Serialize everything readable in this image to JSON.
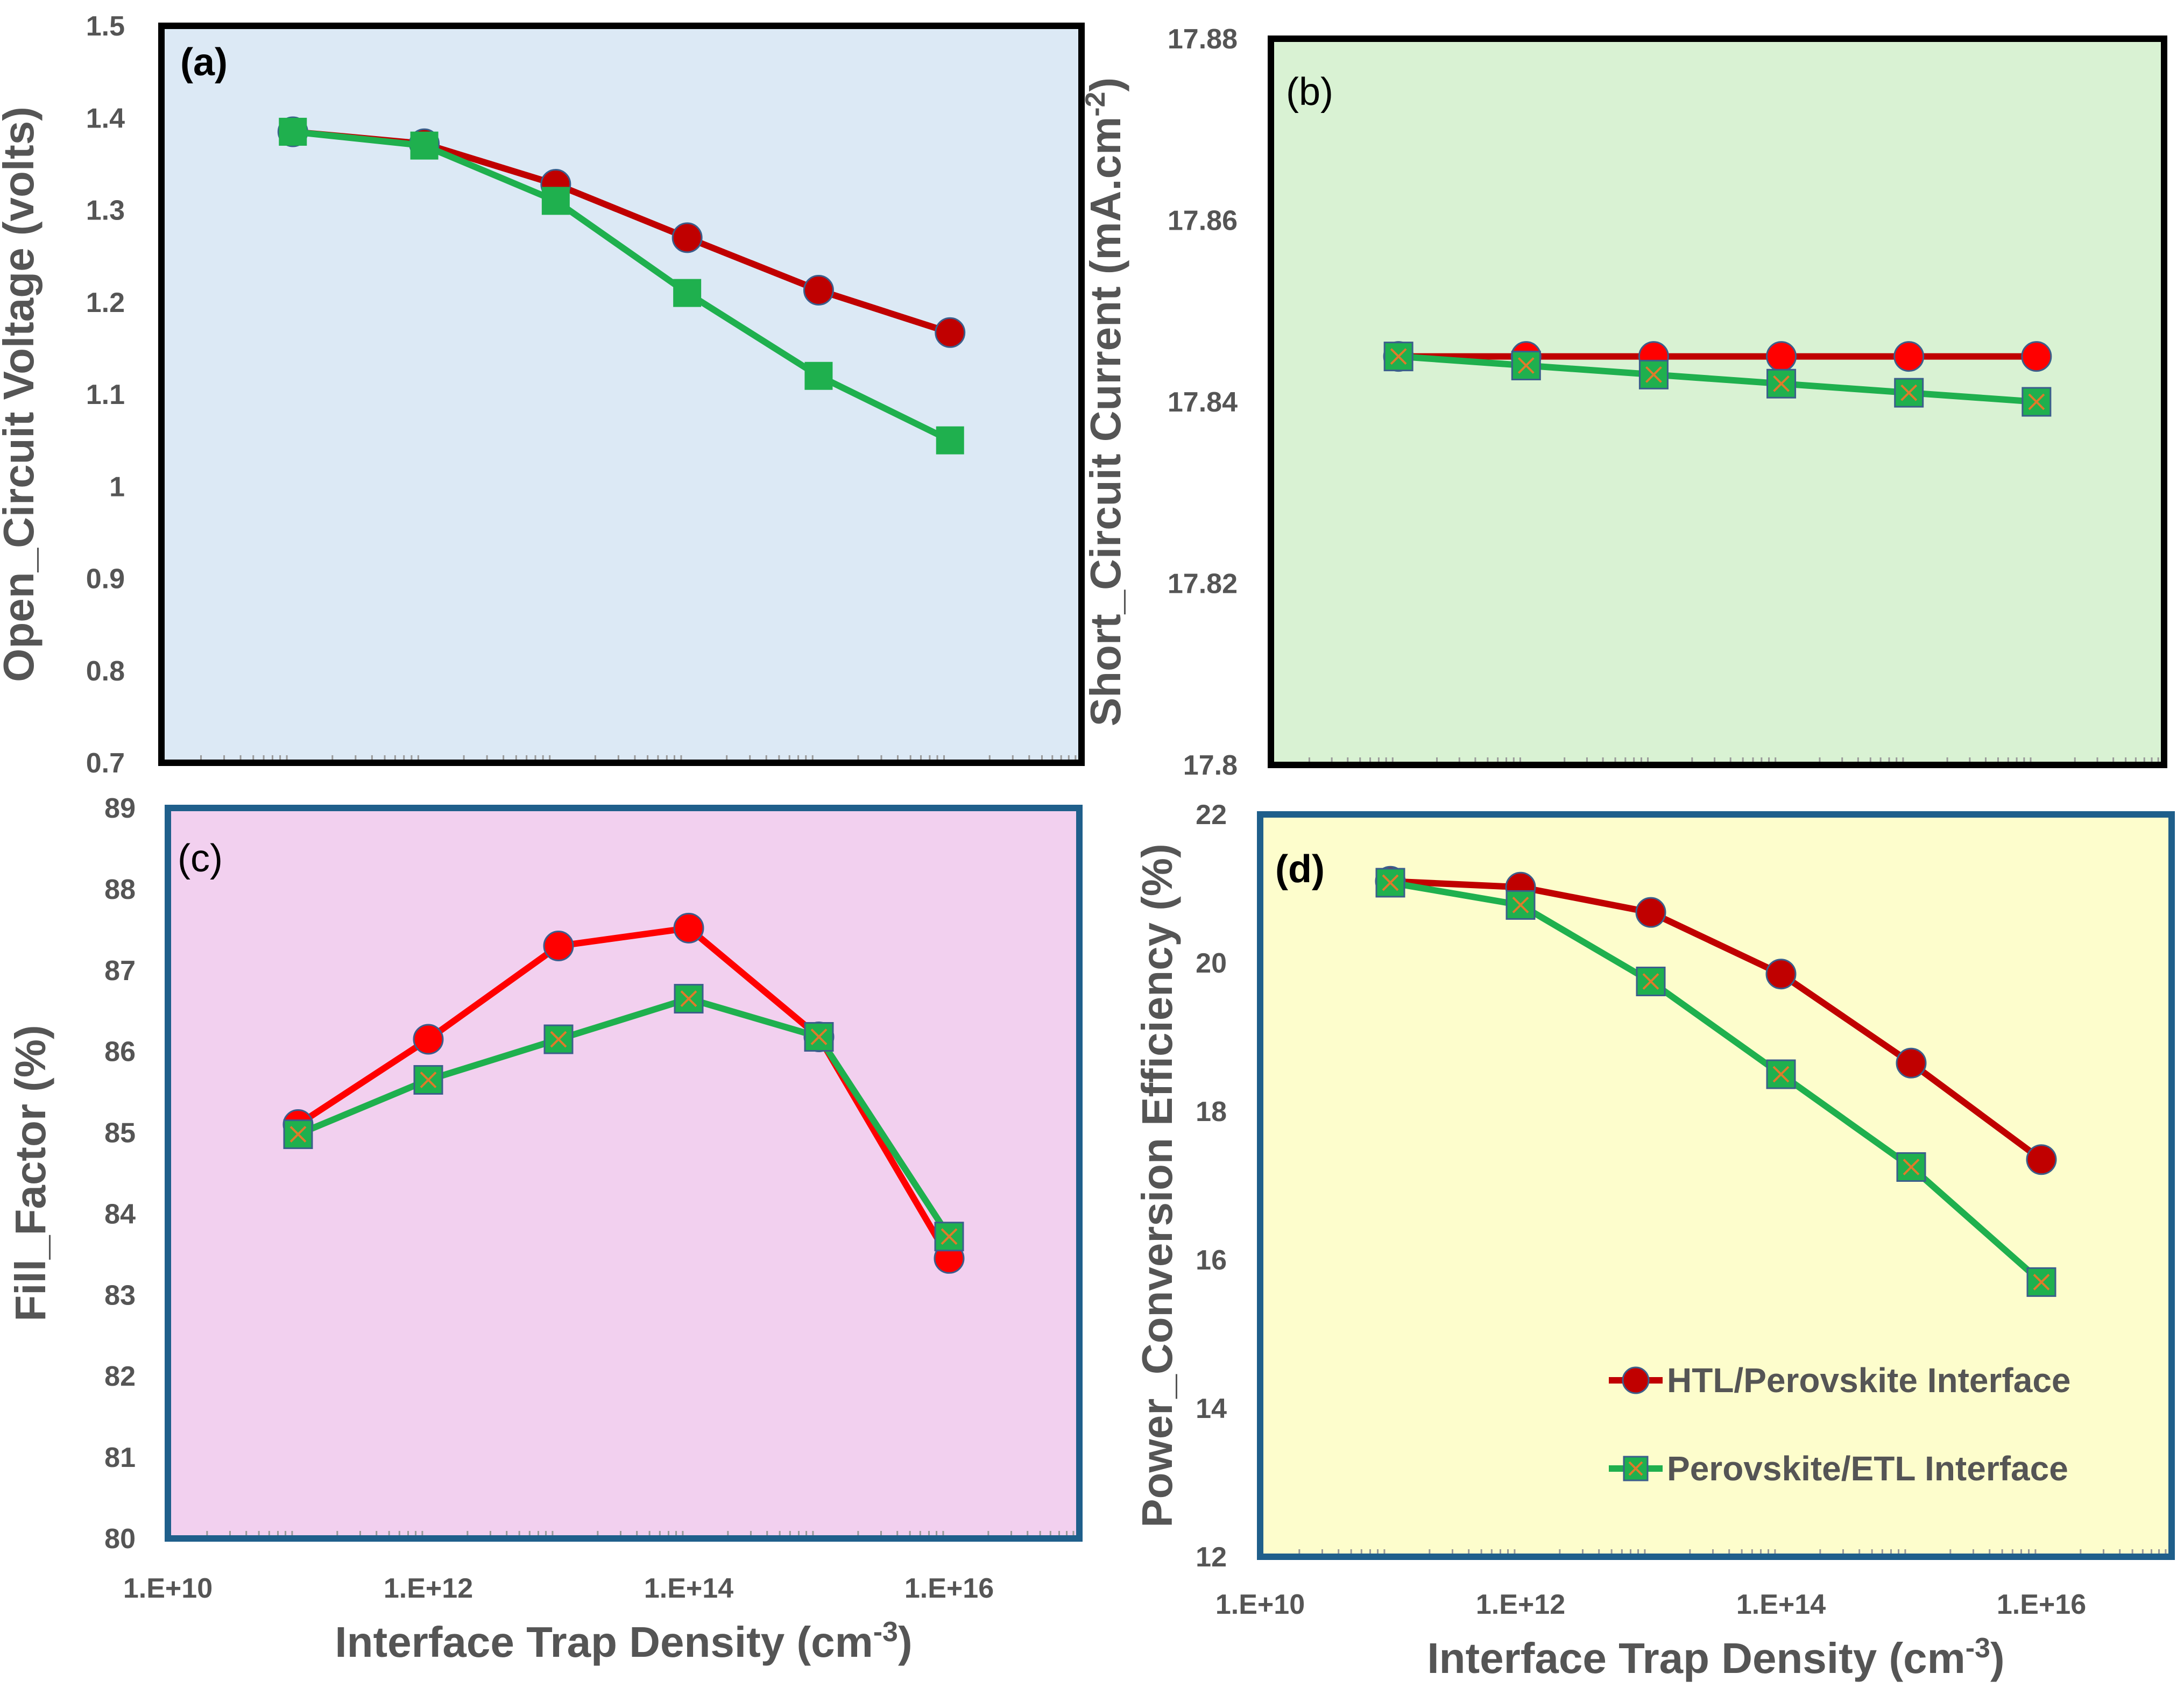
{
  "chart_data": [
    {
      "type": "line",
      "panel_label": "(a)",
      "ylabel": "Open_Circuit Voltage (volts)",
      "xlabel": "",
      "xscale": "log",
      "xlim": [
        10000000000.0,
        1e+17
      ],
      "ylim": [
        0.7,
        1.5
      ],
      "yticks": [
        "0.7",
        "0.8",
        "0.9",
        "1",
        "1.1",
        "1.2",
        "1.3",
        "1.4",
        "1.5"
      ],
      "xticks": [],
      "background": "#dce9f5",
      "x": [
        100000000000.0,
        1000000000000.0,
        10000000000000.0,
        100000000000000.0,
        1000000000000000.0,
        1e+16
      ],
      "series": [
        {
          "name": "HTL/Perovskite Interface",
          "values": [
            1.385,
            1.372,
            1.328,
            1.27,
            1.213,
            1.167
          ],
          "color": "#c00000",
          "marker": "circle",
          "marker_fill": "#c00000"
        },
        {
          "name": "Perovskite/ETL Interface",
          "values": [
            1.385,
            1.37,
            1.31,
            1.21,
            1.12,
            1.05
          ],
          "color": "#1fb04e",
          "marker": "square",
          "marker_fill": "#1fb04e"
        }
      ]
    },
    {
      "type": "line",
      "panel_label": "(b)",
      "ylabel": "Short_Circuit Current (mA.cm",
      "ylabel_sup": "-2",
      "ylabel_end": ")",
      "xlabel": "",
      "xscale": "log",
      "xlim": [
        10000000000.0,
        1e+17
      ],
      "ylim": [
        17.8,
        17.88
      ],
      "yticks": [
        "17.8",
        "17.82",
        "17.84",
        "17.86",
        "17.88"
      ],
      "xticks": [],
      "background": "#d9f2d3",
      "x": [
        100000000000.0,
        1000000000000.0,
        10000000000000.0,
        100000000000000.0,
        1000000000000000.0,
        1e+16
      ],
      "series": [
        {
          "name": "HTL/Perovskite Interface",
          "values": [
            17.845,
            17.845,
            17.845,
            17.845,
            17.845,
            17.845
          ],
          "color": "#c00000",
          "marker": "circle",
          "marker_fill": "#ff0000"
        },
        {
          "name": "Perovskite/ETL Interface",
          "values": [
            17.845,
            17.844,
            17.843,
            17.842,
            17.841,
            17.84
          ],
          "color": "#1fb04e",
          "marker": "square-x",
          "marker_fill": "#1fb04e"
        }
      ]
    },
    {
      "type": "line",
      "panel_label": "(c)",
      "ylabel": "Fill_Factor (%)",
      "xlabel": "Interface Trap Density (cm",
      "xlabel_sup": "-3",
      "xlabel_end": ")",
      "xscale": "log",
      "xlim": [
        10000000000.0,
        1e+17
      ],
      "ylim": [
        80,
        89
      ],
      "yticks": [
        "80",
        "81",
        "82",
        "83",
        "84",
        "85",
        "86",
        "87",
        "88",
        "89"
      ],
      "xticks": [
        "1.E+10",
        "1.E+12",
        "1.E+14",
        "1.E+16"
      ],
      "background": "#f2d0ef",
      "x": [
        100000000000.0,
        1000000000000.0,
        10000000000000.0,
        100000000000000.0,
        1000000000000000.0,
        1e+16
      ],
      "series": [
        {
          "name": "HTL/Perovskite Interface",
          "values": [
            85.1,
            86.15,
            87.3,
            87.52,
            86.18,
            83.45
          ],
          "color": "#ff0000",
          "marker": "circle",
          "marker_fill": "#ff0000"
        },
        {
          "name": "Perovskite/ETL Interface",
          "values": [
            84.98,
            85.65,
            86.15,
            86.65,
            86.18,
            83.72
          ],
          "color": "#1fb04e",
          "marker": "square-x",
          "marker_fill": "#1fb04e"
        }
      ]
    },
    {
      "type": "line",
      "panel_label": "(d)",
      "ylabel": "Power_Conversion Efficiency (%)",
      "xlabel": "Interface Trap Density (cm",
      "xlabel_sup": "-3",
      "xlabel_end": ")",
      "xscale": "log",
      "xlim": [
        10000000000.0,
        1e+17
      ],
      "ylim": [
        12,
        22
      ],
      "yticks": [
        "12",
        "14",
        "16",
        "18",
        "20",
        "22"
      ],
      "xticks": [
        "1.E+10",
        "1.E+12",
        "1.E+14",
        "1.E+16"
      ],
      "background": "#fdfdcc",
      "x": [
        100000000000.0,
        1000000000000.0,
        10000000000000.0,
        100000000000000.0,
        1000000000000000.0,
        1e+16
      ],
      "legend_position": "bottom-right",
      "series": [
        {
          "name": "HTL/Perovskite Interface",
          "values": [
            21.1,
            21.02,
            20.68,
            19.85,
            18.65,
            17.35
          ],
          "color": "#c00000",
          "marker": "circle",
          "marker_fill": "#c00000"
        },
        {
          "name": "Perovskite/ETL Interface",
          "values": [
            21.08,
            20.78,
            19.75,
            18.5,
            17.25,
            15.7
          ],
          "color": "#1fb04e",
          "marker": "square-x",
          "marker_fill": "#1fb04e"
        }
      ]
    }
  ]
}
